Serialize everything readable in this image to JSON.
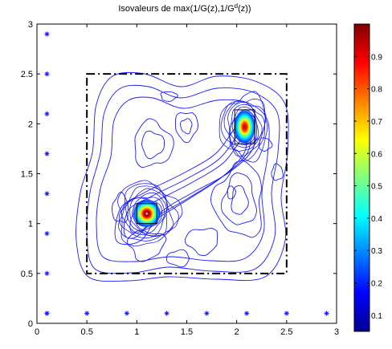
{
  "chart_data": {
    "type": "heatmap",
    "title_text": "Isovaleurs de max(1/G(z),1/G",
    "title_sup": "d",
    "title_end": "(z))",
    "xlabel": "",
    "ylabel": "",
    "xlim": [
      0,
      3
    ],
    "ylim": [
      0,
      3
    ],
    "x_ticks": [
      0,
      0.5,
      1,
      1.5,
      2,
      2.5,
      3
    ],
    "x_tick_labels": [
      "0",
      "0.5",
      "1",
      "1.5",
      "2",
      "2.5",
      "3"
    ],
    "y_ticks": [
      0,
      0.5,
      1,
      1.5,
      2,
      2.5,
      3
    ],
    "y_tick_labels": [
      "0",
      "0.5",
      "1",
      "1.5",
      "2",
      "2.5",
      "3"
    ],
    "colorbar": {
      "range": [
        0.05,
        1.0
      ],
      "ticks": [
        0.1,
        0.2,
        0.3,
        0.4,
        0.5,
        0.6,
        0.7,
        0.8,
        0.9
      ],
      "tick_labels": [
        "0.1",
        "0.2",
        "0.3",
        "0.4",
        "0.5",
        "0.6",
        "0.7",
        "0.8",
        "0.9"
      ],
      "colormap": "jet"
    },
    "dashed_square": {
      "x": [
        0.5,
        2.5
      ],
      "y": [
        0.5,
        2.5
      ]
    },
    "markers_left": {
      "x": 0.1,
      "y": [
        0.1,
        0.5,
        0.9,
        1.3,
        1.7,
        2.1,
        2.5,
        2.9
      ]
    },
    "markers_bottom": {
      "y": 0.1,
      "x": [
        0.1,
        0.5,
        0.9,
        1.3,
        1.7,
        2.1,
        2.5,
        2.9
      ]
    },
    "peaks": [
      {
        "x": 1.1,
        "y": 1.1,
        "peak_value": 1.0,
        "box": {
          "x": [
            1.0,
            1.2
          ],
          "y": [
            1.0,
            1.2
          ]
        }
      },
      {
        "x": 2.08,
        "y": 1.97,
        "peak_value": 0.97,
        "box": {
          "x": [
            1.98,
            2.18
          ],
          "y": [
            1.8,
            2.14
          ]
        }
      }
    ],
    "contour_color": "#1a1aff",
    "marker_color": "#1a1aff"
  }
}
